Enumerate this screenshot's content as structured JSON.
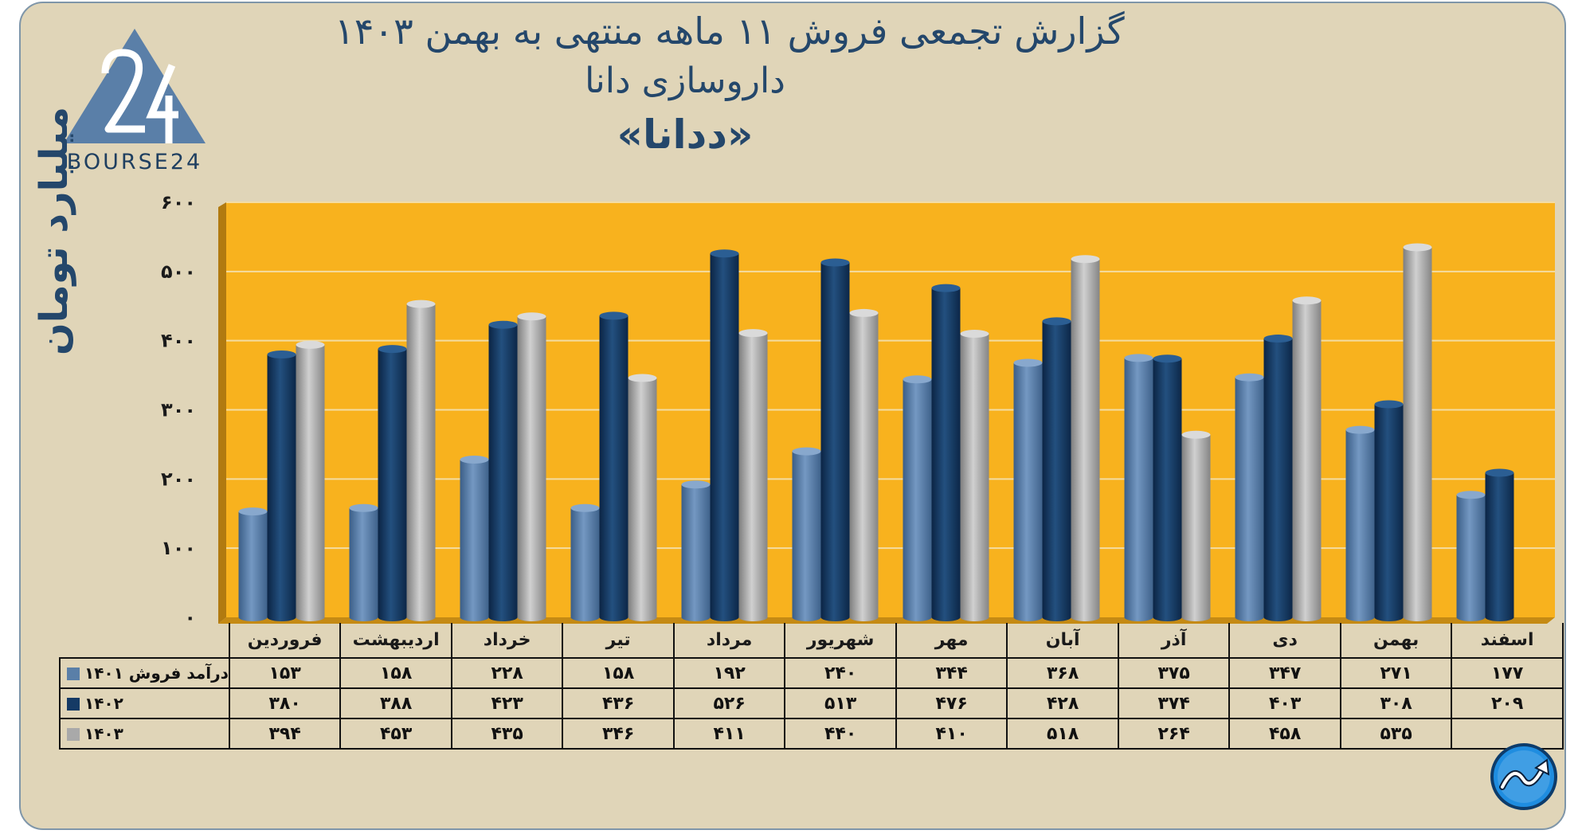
{
  "header": {
    "title": "گزارش تجمعی فروش ۱۱ ماهه منتهی به بهمن ۱۴۰۳",
    "subtitle": "داروسازی دانا",
    "symbol": "«ددانا»"
  },
  "logo": {
    "text": "BOURSE24",
    "mark": "24",
    "icon": "bourse24-triangle-logo"
  },
  "badge": {
    "icon": "trend-arrow-circle-icon"
  },
  "colors": {
    "background": "#e0d5b8",
    "plot": "#f8b21e",
    "series_1401": "#5a7fa8",
    "series_1402": "#153a65",
    "series_1403": "#a9a9a9",
    "title": "#24476b"
  },
  "chart_data": {
    "type": "bar",
    "title": "گزارش تجمعی فروش ۱۱ ماهه منتهی به بهمن ۱۴۰۳",
    "ylabel": "میلیارد تومان",
    "ylim": [
      0,
      600
    ],
    "yticks": [
      0,
      100,
      200,
      300,
      400,
      500,
      600
    ],
    "ytick_labels": [
      "۰",
      "۱۰۰",
      "۲۰۰",
      "۳۰۰",
      "۴۰۰",
      "۵۰۰",
      "۶۰۰"
    ],
    "grid": true,
    "categories": [
      "فروردین",
      "اردیبهشت",
      "خرداد",
      "تیر",
      "مرداد",
      "شهریور",
      "مهر",
      "آبان",
      "آذر",
      "دی",
      "بهمن",
      "اسفند"
    ],
    "series": [
      {
        "name": "درآمد فروش ۱۴۰۱",
        "values": [
          153,
          158,
          228,
          158,
          192,
          240,
          344,
          368,
          375,
          347,
          271,
          177
        ],
        "labels": [
          "۱۵۳",
          "۱۵۸",
          "۲۲۸",
          "۱۵۸",
          "۱۹۲",
          "۲۴۰",
          "۳۴۴",
          "۳۶۸",
          "۳۷۵",
          "۳۴۷",
          "۲۷۱",
          "۱۷۷"
        ]
      },
      {
        "name": "۱۴۰۲",
        "values": [
          380,
          388,
          423,
          436,
          526,
          513,
          476,
          428,
          374,
          403,
          308,
          209
        ],
        "labels": [
          "۳۸۰",
          "۳۸۸",
          "۴۲۳",
          "۴۳۶",
          "۵۲۶",
          "۵۱۳",
          "۴۷۶",
          "۴۲۸",
          "۳۷۴",
          "۴۰۳",
          "۳۰۸",
          "۲۰۹"
        ]
      },
      {
        "name": "۱۴۰۳",
        "values": [
          394,
          453,
          435,
          346,
          411,
          440,
          410,
          518,
          264,
          458,
          535,
          null
        ],
        "labels": [
          "۳۹۴",
          "۴۵۳",
          "۴۳۵",
          "۳۴۶",
          "۴۱۱",
          "۴۴۰",
          "۴۱۰",
          "۵۱۸",
          "۲۶۴",
          "۴۵۸",
          "۵۳۵",
          ""
        ]
      }
    ]
  }
}
